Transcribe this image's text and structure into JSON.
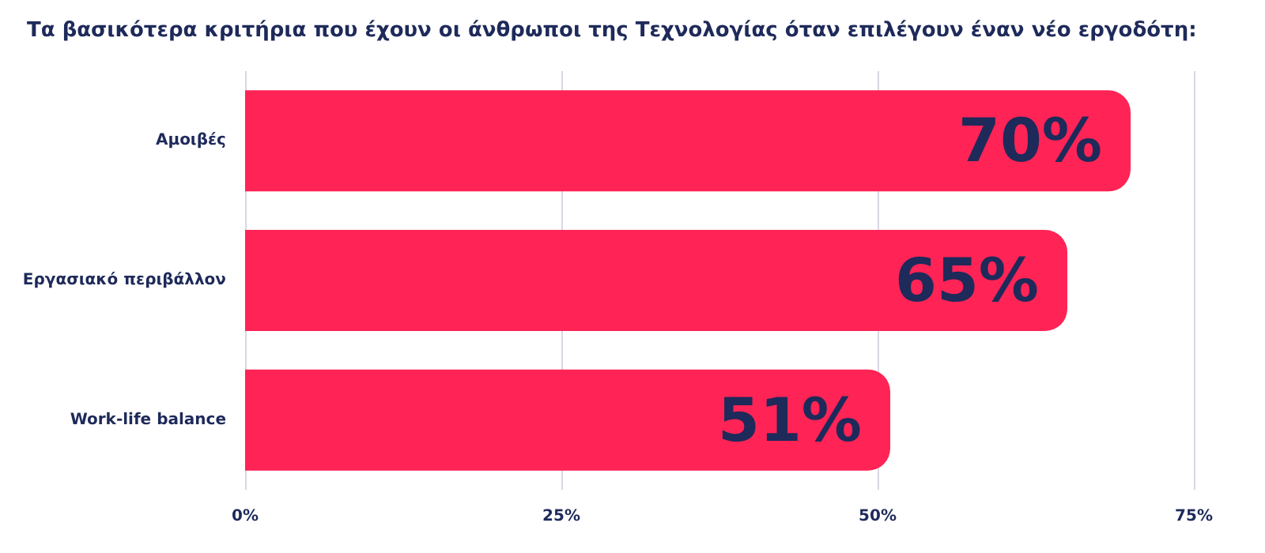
{
  "chart_data": {
    "type": "bar",
    "orientation": "horizontal",
    "title": "Τα βασικότερα κριτήρια που έχουν οι άνθρωποι της Τεχνολογίας όταν επιλέγουν έναν νέο εργοδότη:",
    "categories": [
      "Αμοιβές",
      "Εργασιακό περιβάλλον",
      "Work-life balance"
    ],
    "values": [
      70,
      65,
      51
    ],
    "color": "#ff2455",
    "value_labels": [
      "70%",
      "65%",
      "51%"
    ],
    "xlim": [
      0,
      75
    ],
    "xticks": [
      {
        "value": 0,
        "label": "0%"
      },
      {
        "value": 25,
        "label": "25%"
      },
      {
        "value": 50,
        "label": "50%"
      },
      {
        "value": 75,
        "label": "75%"
      }
    ],
    "grid": "x"
  }
}
